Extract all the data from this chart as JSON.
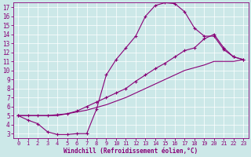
{
  "xlabel": "Windchill (Refroidissement éolien,°C)",
  "bg_color": "#cce8e8",
  "line_color": "#880077",
  "grid_color": "#ffffff",
  "xlim": [
    -0.5,
    23.5
  ],
  "ylim": [
    2.5,
    17.5
  ],
  "xticks": [
    0,
    1,
    2,
    3,
    4,
    5,
    6,
    7,
    8,
    9,
    10,
    11,
    12,
    13,
    14,
    15,
    16,
    17,
    18,
    19,
    20,
    21,
    22,
    23
  ],
  "yticks": [
    3,
    4,
    5,
    6,
    7,
    8,
    9,
    10,
    11,
    12,
    13,
    14,
    15,
    16,
    17
  ],
  "line1_x": [
    0,
    1,
    2,
    3,
    4,
    5,
    6,
    7,
    8,
    9,
    10,
    11,
    12,
    13,
    14,
    15,
    16,
    17,
    18,
    19,
    20,
    21,
    22,
    23
  ],
  "line1_y": [
    5.0,
    4.5,
    4.1,
    3.2,
    2.9,
    2.9,
    3.0,
    3.0,
    5.7,
    9.5,
    11.2,
    12.5,
    13.8,
    16.0,
    17.2,
    17.5,
    17.4,
    16.5,
    14.7,
    13.8,
    13.8,
    12.3,
    11.5,
    11.2
  ],
  "line2_x": [
    0,
    1,
    2,
    3,
    4,
    5,
    6,
    7,
    8,
    9,
    10,
    11,
    12,
    13,
    14,
    15,
    16,
    17,
    18,
    19,
    20,
    21,
    22,
    23
  ],
  "line2_y": [
    5.0,
    5.0,
    5.0,
    5.0,
    5.1,
    5.2,
    5.5,
    6.0,
    6.5,
    7.0,
    7.5,
    8.0,
    8.8,
    9.5,
    10.2,
    10.8,
    11.5,
    12.2,
    12.5,
    13.5,
    14.0,
    12.5,
    11.5,
    11.2
  ],
  "line3_x": [
    0,
    1,
    2,
    3,
    4,
    5,
    6,
    7,
    8,
    9,
    10,
    11,
    12,
    13,
    14,
    15,
    16,
    17,
    18,
    19,
    20,
    21,
    22,
    23
  ],
  "line3_y": [
    5.0,
    5.0,
    5.0,
    5.0,
    5.0,
    5.2,
    5.4,
    5.6,
    5.9,
    6.2,
    6.6,
    7.0,
    7.5,
    8.0,
    8.5,
    9.0,
    9.5,
    10.0,
    10.3,
    10.6,
    11.0,
    11.0,
    11.0,
    11.2
  ]
}
